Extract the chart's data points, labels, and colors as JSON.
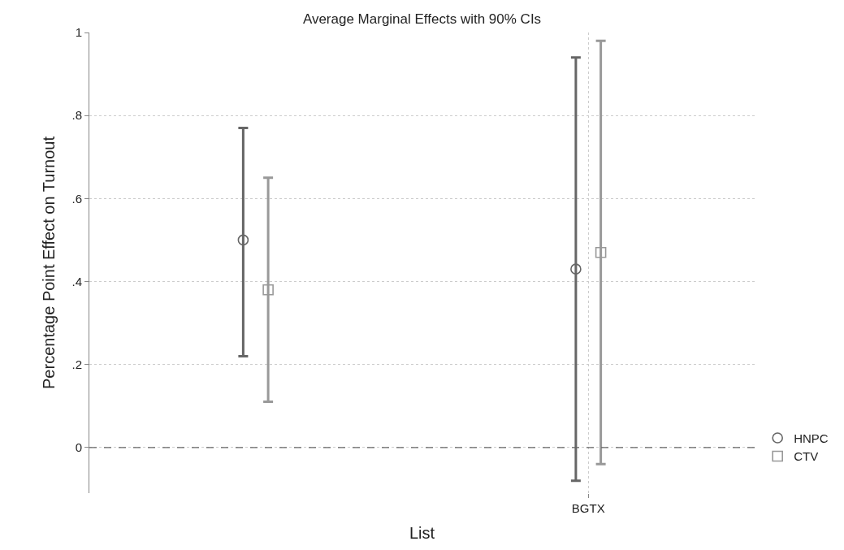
{
  "chart_data": {
    "type": "scatter",
    "title": "Average Marginal Effects with 90% CIs",
    "xlabel": "List",
    "ylabel": "Percentage Point Effect on Turnout",
    "categories": [
      null,
      "BGTX"
    ],
    "series": [
      {
        "name": "HNPC",
        "color": "#666666",
        "marker": "circle",
        "values": [
          0.5,
          0.43
        ],
        "errors": [
          [
            0.22,
            0.77
          ],
          [
            -0.08,
            0.94
          ]
        ]
      },
      {
        "name": "CTV",
        "color": "#999999",
        "marker": "square",
        "values": [
          0.38,
          0.47
        ],
        "errors": [
          [
            0.11,
            0.65
          ],
          [
            -0.04,
            0.98
          ]
        ]
      }
    ],
    "ylim": [
      -0.11,
      1.0
    ],
    "yticks": [
      {
        "value": 0,
        "label": "0"
      },
      {
        "value": 0.2,
        "label": ".2"
      },
      {
        "value": 0.4,
        "label": ".4"
      },
      {
        "value": 0.6,
        "label": ".6"
      },
      {
        "value": 0.8,
        "label": ".8"
      },
      {
        "value": 1,
        "label": "1"
      }
    ],
    "ref_lines": [
      {
        "axis": "y",
        "value": 0,
        "line_style": "dashed",
        "color": "#666666"
      }
    ],
    "grid": true,
    "legend": "right"
  }
}
